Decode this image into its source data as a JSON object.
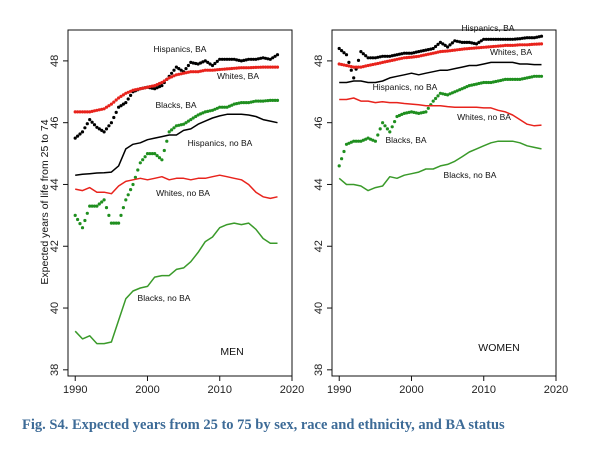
{
  "caption": "Fig. S4. Expected years from 25 to 75 by sex, race and ethnicity, and BA status",
  "chart_data": [
    {
      "type": "line",
      "panel": "MEN",
      "panel_label": "MEN",
      "ylabel": "Expected years of life from 25 to 74",
      "xlabel": "",
      "xlim": [
        1989,
        2020
      ],
      "ylim": [
        37.8,
        49.0
      ],
      "xticks": [
        1990,
        2000,
        2010,
        2020
      ],
      "yticks": [
        38,
        40,
        42,
        44,
        46,
        48
      ],
      "series": [
        {
          "name": "Hispanics, BA",
          "label": "Hispanics, BA",
          "color": "#000000",
          "style": "dotted",
          "x": [
            1990,
            1991,
            1992,
            1993,
            1994,
            1995,
            1996,
            1997,
            1998,
            1999,
            2000,
            2001,
            2002,
            2003,
            2004,
            2005,
            2006,
            2007,
            2008,
            2009,
            2010,
            2011,
            2012,
            2013,
            2014,
            2015,
            2016,
            2017,
            2018
          ],
          "values": [
            45.5,
            45.7,
            46.1,
            45.85,
            45.7,
            46.0,
            46.5,
            46.65,
            47.0,
            47.1,
            47.15,
            47.1,
            47.2,
            47.5,
            47.8,
            47.65,
            47.95,
            47.9,
            48.0,
            47.85,
            48.05,
            48.05,
            48.05,
            48.0,
            48.05,
            48.05,
            48.1,
            48.05,
            48.2
          ]
        },
        {
          "name": "Whites, BA",
          "label": "Whites, BA",
          "color": "#e8231c",
          "style": "dotted",
          "x": [
            1990,
            1991,
            1992,
            1993,
            1994,
            1995,
            1996,
            1997,
            1998,
            1999,
            2000,
            2001,
            2002,
            2003,
            2004,
            2005,
            2006,
            2007,
            2008,
            2009,
            2010,
            2011,
            2012,
            2013,
            2014,
            2015,
            2016,
            2017,
            2018
          ],
          "values": [
            46.35,
            46.35,
            46.35,
            46.4,
            46.45,
            46.6,
            46.8,
            46.95,
            47.05,
            47.1,
            47.15,
            47.2,
            47.3,
            47.45,
            47.55,
            47.6,
            47.65,
            47.65,
            47.7,
            47.7,
            47.72,
            47.74,
            47.76,
            47.78,
            47.78,
            47.79,
            47.8,
            47.8,
            47.8
          ]
        },
        {
          "name": "Blacks, BA",
          "label": "Blacks, BA",
          "color": "#1f8f1f",
          "style": "dotted",
          "x": [
            1990,
            1991,
            1992,
            1993,
            1994,
            1995,
            1996,
            1997,
            1998,
            1999,
            2000,
            2001,
            2002,
            2003,
            2004,
            2005,
            2006,
            2007,
            2008,
            2009,
            2010,
            2011,
            2012,
            2013,
            2014,
            2015,
            2016,
            2017,
            2018
          ],
          "values": [
            43.0,
            42.6,
            43.3,
            43.3,
            43.5,
            42.75,
            42.75,
            43.5,
            44.0,
            44.7,
            45.0,
            45.0,
            44.8,
            45.7,
            45.9,
            45.95,
            46.1,
            46.25,
            46.35,
            46.4,
            46.5,
            46.5,
            46.6,
            46.65,
            46.65,
            46.7,
            46.7,
            46.72,
            46.72
          ]
        },
        {
          "name": "Hispanics, no BA",
          "label": "Hispanics, no BA",
          "color": "#000000",
          "style": "solid",
          "x": [
            1990,
            1991,
            1992,
            1993,
            1994,
            1995,
            1996,
            1997,
            1998,
            1999,
            2000,
            2001,
            2002,
            2003,
            2004,
            2005,
            2006,
            2007,
            2008,
            2009,
            2010,
            2011,
            2012,
            2013,
            2014,
            2015,
            2016,
            2017,
            2018
          ],
          "values": [
            44.3,
            44.33,
            44.35,
            44.37,
            44.38,
            44.4,
            44.6,
            45.15,
            45.3,
            45.35,
            45.45,
            45.5,
            45.55,
            45.6,
            45.6,
            45.75,
            45.8,
            45.95,
            46.05,
            46.15,
            46.22,
            46.27,
            46.27,
            46.27,
            46.25,
            46.2,
            46.1,
            46.05,
            46.0
          ]
        },
        {
          "name": "Whites, no BA",
          "label": "Whites, no BA",
          "color": "#e8231c",
          "style": "solid",
          "x": [
            1990,
            1991,
            1992,
            1993,
            1994,
            1995,
            1996,
            1997,
            1998,
            1999,
            2000,
            2001,
            2002,
            2003,
            2004,
            2005,
            2006,
            2007,
            2008,
            2009,
            2010,
            2011,
            2012,
            2013,
            2014,
            2015,
            2016,
            2017,
            2018
          ],
          "values": [
            43.85,
            43.8,
            43.9,
            43.75,
            43.75,
            43.7,
            43.95,
            44.1,
            44.15,
            44.2,
            44.15,
            44.2,
            44.25,
            44.15,
            44.2,
            44.2,
            44.15,
            44.2,
            44.2,
            44.25,
            44.3,
            44.25,
            44.2,
            44.15,
            44.0,
            43.75,
            43.6,
            43.55,
            43.6
          ]
        },
        {
          "name": "Blacks, no BA",
          "label": "Blacks, no BA",
          "color": "#3a9a2a",
          "style": "solid",
          "x": [
            1990,
            1991,
            1992,
            1993,
            1994,
            1995,
            1996,
            1997,
            1998,
            1999,
            2000,
            2001,
            2002,
            2003,
            2004,
            2005,
            2006,
            2007,
            2008,
            2009,
            2010,
            2011,
            2012,
            2013,
            2014,
            2015,
            2016,
            2017,
            2018
          ],
          "values": [
            39.25,
            39.0,
            39.1,
            38.85,
            38.85,
            38.9,
            39.6,
            40.3,
            40.55,
            40.65,
            40.7,
            41.0,
            41.05,
            41.05,
            41.25,
            41.3,
            41.5,
            41.8,
            42.15,
            42.3,
            42.6,
            42.7,
            42.75,
            42.7,
            42.75,
            42.55,
            42.25,
            42.1,
            42.1
          ]
        }
      ]
    },
    {
      "type": "line",
      "panel": "WOMEN",
      "panel_label": "WOMEN",
      "ylabel": "",
      "xlabel": "",
      "xlim": [
        1989,
        2020
      ],
      "ylim": [
        37.8,
        49.0
      ],
      "xticks": [
        1990,
        2000,
        2010,
        2020
      ],
      "yticks": [
        38,
        40,
        42,
        44,
        46,
        48
      ],
      "series": [
        {
          "name": "Hispanics, BA",
          "label": "Hispanics, BA",
          "color": "#000000",
          "style": "dotted",
          "x": [
            1990,
            1991,
            1992,
            1993,
            1994,
            1995,
            1996,
            1997,
            1998,
            1999,
            2000,
            2001,
            2002,
            2003,
            2004,
            2005,
            2006,
            2007,
            2008,
            2009,
            2010,
            2011,
            2012,
            2013,
            2014,
            2015,
            2016,
            2017,
            2018
          ],
          "values": [
            48.4,
            48.2,
            47.45,
            48.3,
            48.1,
            48.1,
            48.15,
            48.15,
            48.2,
            48.25,
            48.25,
            48.3,
            48.35,
            48.4,
            48.6,
            48.45,
            48.65,
            48.6,
            48.6,
            48.55,
            48.7,
            48.7,
            48.7,
            48.7,
            48.7,
            48.72,
            48.75,
            48.75,
            48.8
          ]
        },
        {
          "name": "Whites, BA",
          "label": "Whites, BA",
          "color": "#e8231c",
          "style": "dotted",
          "x": [
            1990,
            1991,
            1992,
            1993,
            1994,
            1995,
            1996,
            1997,
            1998,
            1999,
            2000,
            2001,
            2002,
            2003,
            2004,
            2005,
            2006,
            2007,
            2008,
            2009,
            2010,
            2011,
            2012,
            2013,
            2014,
            2015,
            2016,
            2017,
            2018
          ],
          "values": [
            47.9,
            47.85,
            47.8,
            47.8,
            47.85,
            47.9,
            47.95,
            48.0,
            48.05,
            48.1,
            48.12,
            48.15,
            48.2,
            48.25,
            48.3,
            48.32,
            48.35,
            48.38,
            48.4,
            48.42,
            48.44,
            48.46,
            48.48,
            48.5,
            48.5,
            48.52,
            48.52,
            48.54,
            48.55
          ]
        },
        {
          "name": "Hispanics, no BA",
          "label": "Hispanics, no BA",
          "color": "#000000",
          "style": "solid",
          "x": [
            1990,
            1991,
            1992,
            1993,
            1994,
            1995,
            1996,
            1997,
            1998,
            1999,
            2000,
            2001,
            2002,
            2003,
            2004,
            2005,
            2006,
            2007,
            2008,
            2009,
            2010,
            2011,
            2012,
            2013,
            2014,
            2015,
            2016,
            2017,
            2018
          ],
          "values": [
            47.3,
            47.3,
            47.35,
            47.35,
            47.3,
            47.3,
            47.35,
            47.45,
            47.5,
            47.55,
            47.6,
            47.55,
            47.6,
            47.65,
            47.7,
            47.7,
            47.75,
            47.8,
            47.85,
            47.85,
            47.9,
            47.95,
            47.95,
            47.95,
            47.95,
            47.9,
            47.9,
            47.88,
            47.88
          ]
        },
        {
          "name": "Blacks, BA",
          "label": "Blacks, BA",
          "color": "#1f8f1f",
          "style": "dotted",
          "x": [
            1990,
            1991,
            1992,
            1993,
            1994,
            1995,
            1996,
            1997,
            1998,
            1999,
            2000,
            2001,
            2002,
            2003,
            2004,
            2005,
            2006,
            2007,
            2008,
            2009,
            2010,
            2011,
            2012,
            2013,
            2014,
            2015,
            2016,
            2017,
            2018
          ],
          "values": [
            44.6,
            45.3,
            45.4,
            45.4,
            45.5,
            45.4,
            46.0,
            45.7,
            46.2,
            46.3,
            46.35,
            46.3,
            46.35,
            46.7,
            46.95,
            46.9,
            47.0,
            47.1,
            47.2,
            47.25,
            47.3,
            47.3,
            47.35,
            47.4,
            47.4,
            47.4,
            47.45,
            47.5,
            47.5
          ]
        },
        {
          "name": "Whites, no BA",
          "label": "Whites, no BA",
          "color": "#e8231c",
          "style": "solid",
          "x": [
            1990,
            1991,
            1992,
            1993,
            1994,
            1995,
            1996,
            1997,
            1998,
            1999,
            2000,
            2001,
            2002,
            2003,
            2004,
            2005,
            2006,
            2007,
            2008,
            2009,
            2010,
            2011,
            2012,
            2013,
            2014,
            2015,
            2016,
            2017,
            2018
          ],
          "values": [
            46.75,
            46.75,
            46.8,
            46.7,
            46.7,
            46.65,
            46.68,
            46.65,
            46.65,
            46.62,
            46.6,
            46.58,
            46.55,
            46.55,
            46.55,
            46.52,
            46.5,
            46.5,
            46.5,
            46.5,
            46.48,
            46.48,
            46.4,
            46.35,
            46.25,
            46.1,
            45.95,
            45.9,
            45.92
          ]
        },
        {
          "name": "Blacks, no BA",
          "label": "Blacks, no BA",
          "color": "#3a9a2a",
          "style": "solid",
          "x": [
            1990,
            1991,
            1992,
            1993,
            1994,
            1995,
            1996,
            1997,
            1998,
            1999,
            2000,
            2001,
            2002,
            2003,
            2004,
            2005,
            2006,
            2007,
            2008,
            2009,
            2010,
            2011,
            2012,
            2013,
            2014,
            2015,
            2016,
            2017,
            2018
          ],
          "values": [
            44.2,
            44.0,
            44.0,
            43.95,
            43.8,
            43.9,
            43.95,
            44.25,
            44.2,
            44.3,
            44.35,
            44.4,
            44.5,
            44.5,
            44.6,
            44.65,
            44.75,
            44.9,
            45.05,
            45.15,
            45.25,
            45.35,
            45.4,
            45.4,
            45.4,
            45.35,
            45.25,
            45.2,
            45.15
          ]
        }
      ]
    }
  ]
}
